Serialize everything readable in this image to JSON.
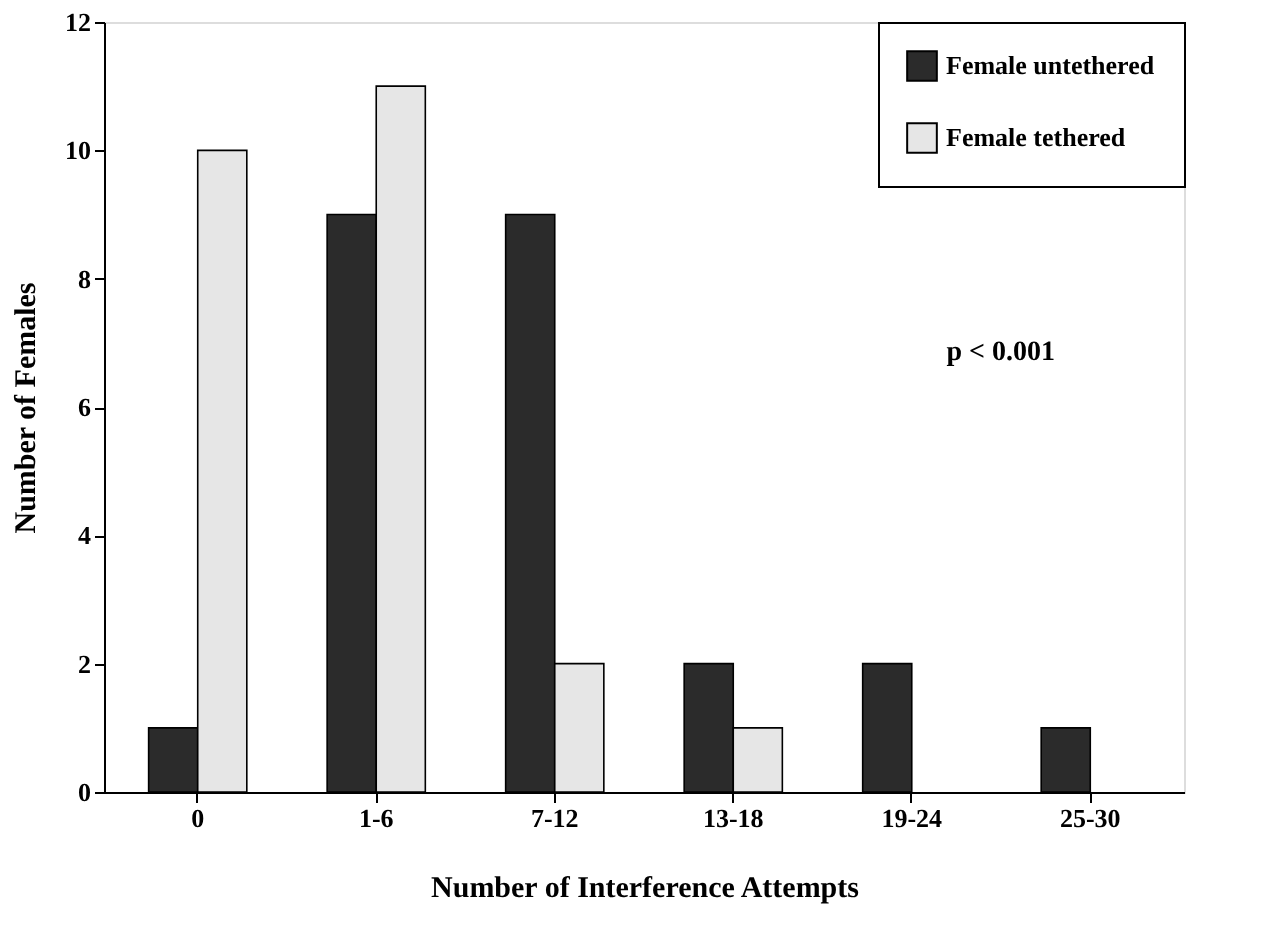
{
  "chart_data": {
    "type": "bar",
    "xlabel": "Number of Interference Attempts",
    "ylabel": "Number of Females",
    "categories": [
      "0",
      "1-6",
      "7-12",
      "13-18",
      "19-24",
      "25-30"
    ],
    "series": [
      {
        "name": "Female untethered",
        "color": "#2b2b2b",
        "values": [
          1,
          9,
          9,
          2,
          2,
          1
        ]
      },
      {
        "name": "Female tethered",
        "color": "#e6e6e6",
        "values": [
          10,
          11,
          2,
          1,
          null,
          null
        ]
      }
    ],
    "ylim": [
      0,
      12
    ],
    "yticks": [
      0,
      2,
      4,
      6,
      8,
      10,
      12
    ],
    "grid": false,
    "legend": "top right",
    "annotations": [
      "p < 0.001"
    ]
  }
}
